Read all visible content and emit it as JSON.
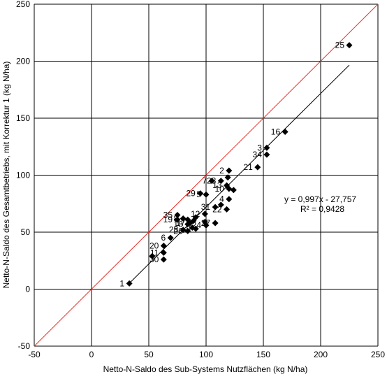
{
  "chart_data": {
    "type": "scatter",
    "title": "",
    "xlabel": "Netto-N-Saldo des Sub-Systems Nutzflächen (kg N/ha)",
    "ylabel": "Netto-N-Saldo des Gesamtbetriebs, mit Korrektur 1  (kg N/ha)",
    "xlim": [
      -50,
      250
    ],
    "ylim": [
      -50,
      250
    ],
    "xticks": [
      -50,
      0,
      50,
      100,
      150,
      200,
      250
    ],
    "yticks": [
      -50,
      0,
      50,
      100,
      150,
      200,
      250
    ],
    "grid": true,
    "identity_line_color": "#e8302a",
    "regression": {
      "slope": 0.997,
      "intercept": -27.757,
      "x_range": [
        32,
        225
      ],
      "equation": "y = 0,997x  - 27,757",
      "r2": "R² = 0,9428"
    },
    "points": [
      {
        "label": "1",
        "x": 33,
        "y": 5
      },
      {
        "label": "25",
        "x": 225,
        "y": 214
      },
      {
        "label": "16",
        "x": 169,
        "y": 138
      },
      {
        "label": "3",
        "x": 153,
        "y": 124
      },
      {
        "label": "34",
        "x": 153,
        "y": 118
      },
      {
        "label": "21",
        "x": 145,
        "y": 107
      },
      {
        "label": "2",
        "x": 120,
        "y": 104
      },
      {
        "label": "",
        "x": 119,
        "y": 98
      },
      {
        "label": "23",
        "x": 113,
        "y": 95
      },
      {
        "label": "7",
        "x": 105,
        "y": 95
      },
      {
        "label": "13",
        "x": 118,
        "y": 91
      },
      {
        "label": "10",
        "x": 120,
        "y": 88
      },
      {
        "label": "",
        "x": 124,
        "y": 87
      },
      {
        "label": "29",
        "x": 95,
        "y": 84
      },
      {
        "label": "5",
        "x": 100,
        "y": 83
      },
      {
        "label": "4",
        "x": 120,
        "y": 79
      },
      {
        "label": "",
        "x": 113,
        "y": 74
      },
      {
        "label": "22",
        "x": 118,
        "y": 70
      },
      {
        "label": "31",
        "x": 108,
        "y": 72
      },
      {
        "label": "12",
        "x": 99,
        "y": 66
      },
      {
        "label": "35",
        "x": 75,
        "y": 65
      },
      {
        "label": "19",
        "x": 75,
        "y": 61
      },
      {
        "label": "8",
        "x": 80,
        "y": 62
      },
      {
        "label": "",
        "x": 84,
        "y": 61
      },
      {
        "label": "17",
        "x": 86,
        "y": 58
      },
      {
        "label": "18",
        "x": 84,
        "y": 57
      },
      {
        "label": "",
        "x": 89,
        "y": 60
      },
      {
        "label": "",
        "x": 91,
        "y": 63
      },
      {
        "label": "9",
        "x": 91,
        "y": 53
      },
      {
        "label": "",
        "x": 99,
        "y": 59
      },
      {
        "label": "24",
        "x": 100,
        "y": 56
      },
      {
        "label": "27",
        "x": 108,
        "y": 58
      },
      {
        "label": "28",
        "x": 80,
        "y": 52
      },
      {
        "label": "26",
        "x": 84,
        "y": 51
      },
      {
        "label": "6",
        "x": 69,
        "y": 45
      },
      {
        "label": "",
        "x": 88,
        "y": 54
      },
      {
        "label": "20",
        "x": 63,
        "y": 38
      },
      {
        "label": "11",
        "x": 63,
        "y": 32
      },
      {
        "label": "",
        "x": 53,
        "y": 29
      },
      {
        "label": "30",
        "x": 63,
        "y": 26
      }
    ]
  }
}
